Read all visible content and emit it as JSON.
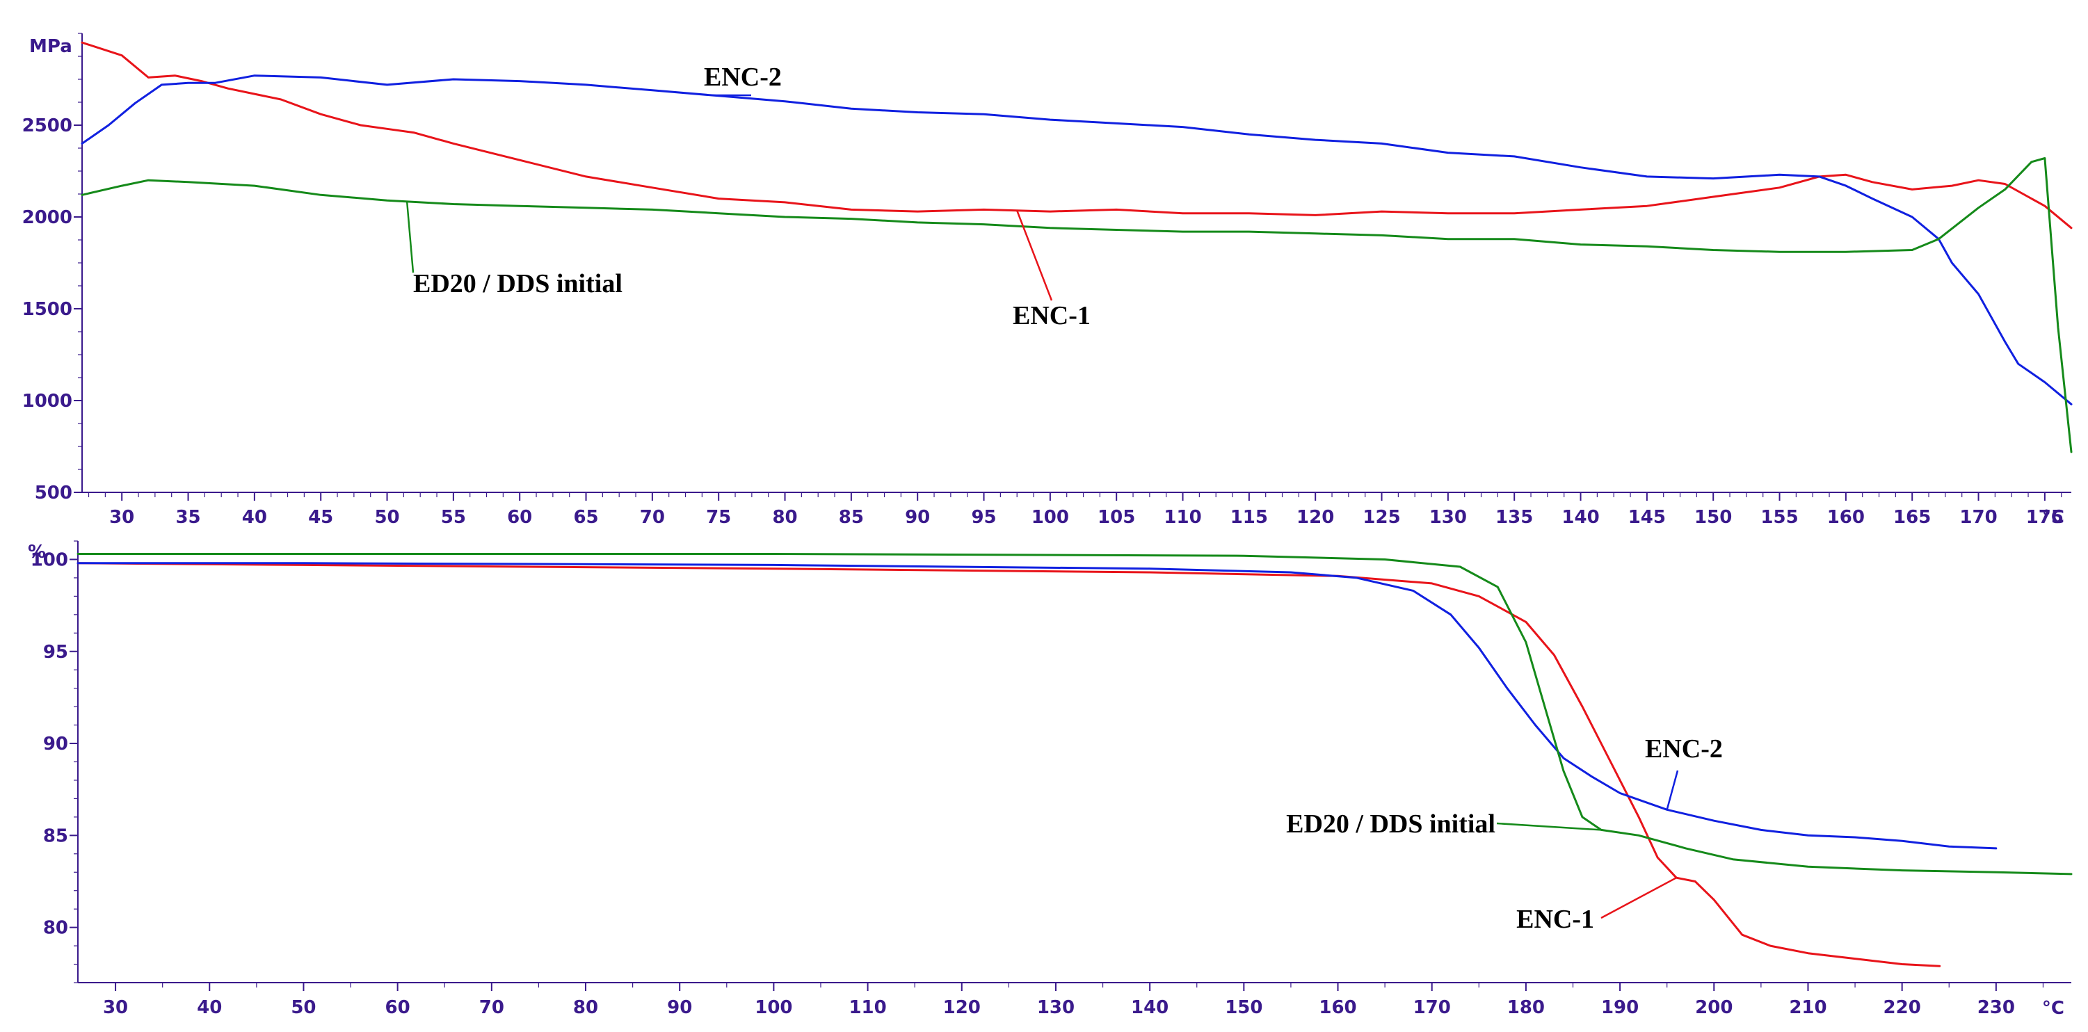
{
  "chart_data": [
    {
      "type": "line",
      "title": "",
      "ylabel": "MPa",
      "xlabel": "°C",
      "xlim": [
        27,
        177
      ],
      "ylim": [
        500,
        3000
      ],
      "yticks": [
        500,
        1000,
        1500,
        2000,
        2500
      ],
      "xticks": [
        30,
        35,
        40,
        45,
        50,
        55,
        60,
        65,
        70,
        75,
        80,
        85,
        90,
        95,
        100,
        105,
        110,
        115,
        120,
        125,
        130,
        135,
        140,
        145,
        150,
        155,
        160,
        165,
        170,
        175
      ],
      "ytick_labels": [
        "500",
        "1000",
        "1500",
        "2000",
        "2500"
      ],
      "xtick_labels": [
        "30",
        "35",
        "40",
        "45",
        "50",
        "55",
        "60",
        "65",
        "70",
        "75",
        "80",
        "85",
        "90",
        "95",
        "100",
        "105",
        "110",
        "115",
        "120",
        "125",
        "130",
        "135",
        "140",
        "145",
        "150",
        "155",
        "160",
        "165",
        "170",
        "175"
      ],
      "series": [
        {
          "name": "ENC-1",
          "color": "#e8141a",
          "x": [
            27,
            30,
            32,
            34,
            36,
            38,
            40,
            42,
            45,
            48,
            50,
            52,
            55,
            60,
            65,
            70,
            75,
            80,
            85,
            90,
            95,
            100,
            105,
            110,
            115,
            120,
            125,
            130,
            135,
            140,
            145,
            150,
            155,
            158,
            160,
            162,
            165,
            168,
            170,
            172,
            175,
            177
          ],
          "y": [
            2950,
            2880,
            2760,
            2770,
            2740,
            2700,
            2670,
            2640,
            2560,
            2500,
            2480,
            2460,
            2400,
            2310,
            2220,
            2160,
            2100,
            2080,
            2040,
            2030,
            2040,
            2030,
            2040,
            2020,
            2020,
            2010,
            2030,
            2020,
            2020,
            2040,
            2060,
            2110,
            2160,
            2220,
            2230,
            2190,
            2150,
            2170,
            2200,
            2180,
            2060,
            1940
          ]
        },
        {
          "name": "ENC-2",
          "color": "#1020e0",
          "x": [
            27,
            29,
            31,
            33,
            35,
            37,
            40,
            45,
            50,
            55,
            60,
            65,
            70,
            75,
            80,
            85,
            90,
            95,
            100,
            105,
            110,
            115,
            120,
            125,
            130,
            135,
            140,
            145,
            150,
            155,
            158,
            160,
            162,
            165,
            167,
            168,
            170,
            171,
            172,
            173,
            174,
            175,
            177
          ],
          "y": [
            2400,
            2500,
            2620,
            2720,
            2730,
            2730,
            2770,
            2760,
            2720,
            2750,
            2740,
            2720,
            2690,
            2660,
            2630,
            2590,
            2570,
            2560,
            2530,
            2510,
            2490,
            2450,
            2420,
            2400,
            2350,
            2330,
            2270,
            2220,
            2210,
            2230,
            2220,
            2170,
            2100,
            2000,
            1880,
            1750,
            1580,
            1450,
            1320,
            1200,
            1150,
            1100,
            980
          ]
        },
        {
          "name": "ED20 / DDS initial",
          "color": "#158a1a",
          "x": [
            27,
            30,
            32,
            35,
            40,
            45,
            50,
            55,
            60,
            65,
            70,
            75,
            80,
            85,
            90,
            95,
            100,
            105,
            110,
            115,
            120,
            125,
            130,
            135,
            140,
            145,
            150,
            155,
            160,
            165,
            167,
            170,
            172,
            174,
            175,
            176,
            177
          ],
          "y": [
            2120,
            2170,
            2200,
            2190,
            2170,
            2120,
            2090,
            2070,
            2060,
            2050,
            2040,
            2020,
            2000,
            1990,
            1970,
            1960,
            1940,
            1930,
            1920,
            1920,
            1910,
            1900,
            1880,
            1880,
            1850,
            1840,
            1820,
            1810,
            1810,
            1820,
            1880,
            2050,
            2150,
            2300,
            2320,
            1400,
            720
          ]
        }
      ],
      "annotations": [
        {
          "text": "ENC-2",
          "series": "ENC-2"
        },
        {
          "text": "ED20 / DDS initial",
          "series": "ED20 / DDS initial"
        },
        {
          "text": "ENC-1",
          "series": "ENC-1"
        }
      ]
    },
    {
      "type": "line",
      "title": "",
      "ylabel": "%",
      "xlabel": "°C",
      "xlim": [
        26,
        238
      ],
      "ylim": [
        77,
        101
      ],
      "yticks": [
        80,
        85,
        90,
        95,
        100
      ],
      "xticks": [
        30,
        40,
        50,
        60,
        70,
        80,
        90,
        100,
        110,
        120,
        130,
        140,
        150,
        160,
        170,
        180,
        190,
        200,
        210,
        220,
        230
      ],
      "ytick_labels": [
        "80",
        "85",
        "90",
        "95",
        "100"
      ],
      "xtick_labels": [
        "30",
        "40",
        "50",
        "60",
        "70",
        "80",
        "90",
        "100",
        "110",
        "120",
        "130",
        "140",
        "150",
        "160",
        "170",
        "180",
        "190",
        "200",
        "210",
        "220",
        "230"
      ],
      "series": [
        {
          "name": "ENC-1",
          "color": "#e8141a",
          "x": [
            26,
            50,
            100,
            140,
            160,
            170,
            175,
            180,
            183,
            186,
            189,
            192,
            194,
            196,
            198,
            200,
            203,
            206,
            210,
            215,
            220,
            224
          ],
          "y": [
            99.8,
            99.7,
            99.5,
            99.3,
            99.1,
            98.7,
            98.0,
            96.6,
            94.8,
            92.0,
            89.0,
            86.0,
            83.8,
            82.7,
            82.5,
            81.5,
            79.6,
            79.0,
            78.6,
            78.3,
            78.0,
            77.9
          ]
        },
        {
          "name": "ENC-2",
          "color": "#1020e0",
          "x": [
            26,
            50,
            100,
            140,
            155,
            162,
            168,
            172,
            175,
            178,
            181,
            184,
            187,
            190,
            195,
            200,
            205,
            210,
            215,
            220,
            225,
            230
          ],
          "y": [
            99.8,
            99.8,
            99.7,
            99.5,
            99.3,
            99.0,
            98.3,
            97.0,
            95.2,
            93.0,
            91.0,
            89.2,
            88.2,
            87.3,
            86.4,
            85.8,
            85.3,
            85.0,
            84.9,
            84.7,
            84.4,
            84.3
          ]
        },
        {
          "name": "ED20 / DDS initial",
          "color": "#158a1a",
          "x": [
            26,
            50,
            100,
            150,
            165,
            173,
            177,
            180,
            182,
            184,
            186,
            188,
            192,
            197,
            202,
            210,
            220,
            230,
            238
          ],
          "y": [
            100.3,
            100.3,
            100.3,
            100.2,
            100.0,
            99.6,
            98.5,
            95.5,
            92.0,
            88.5,
            86.0,
            85.3,
            85.0,
            84.3,
            83.7,
            83.3,
            83.1,
            83.0,
            82.9
          ]
        }
      ],
      "annotations": [
        {
          "text": "ENC-2",
          "series": "ENC-2"
        },
        {
          "text": "ED20 / DDS initial",
          "series": "ED20 / DDS initial"
        },
        {
          "text": "ENC-1",
          "series": "ENC-1"
        }
      ]
    }
  ]
}
